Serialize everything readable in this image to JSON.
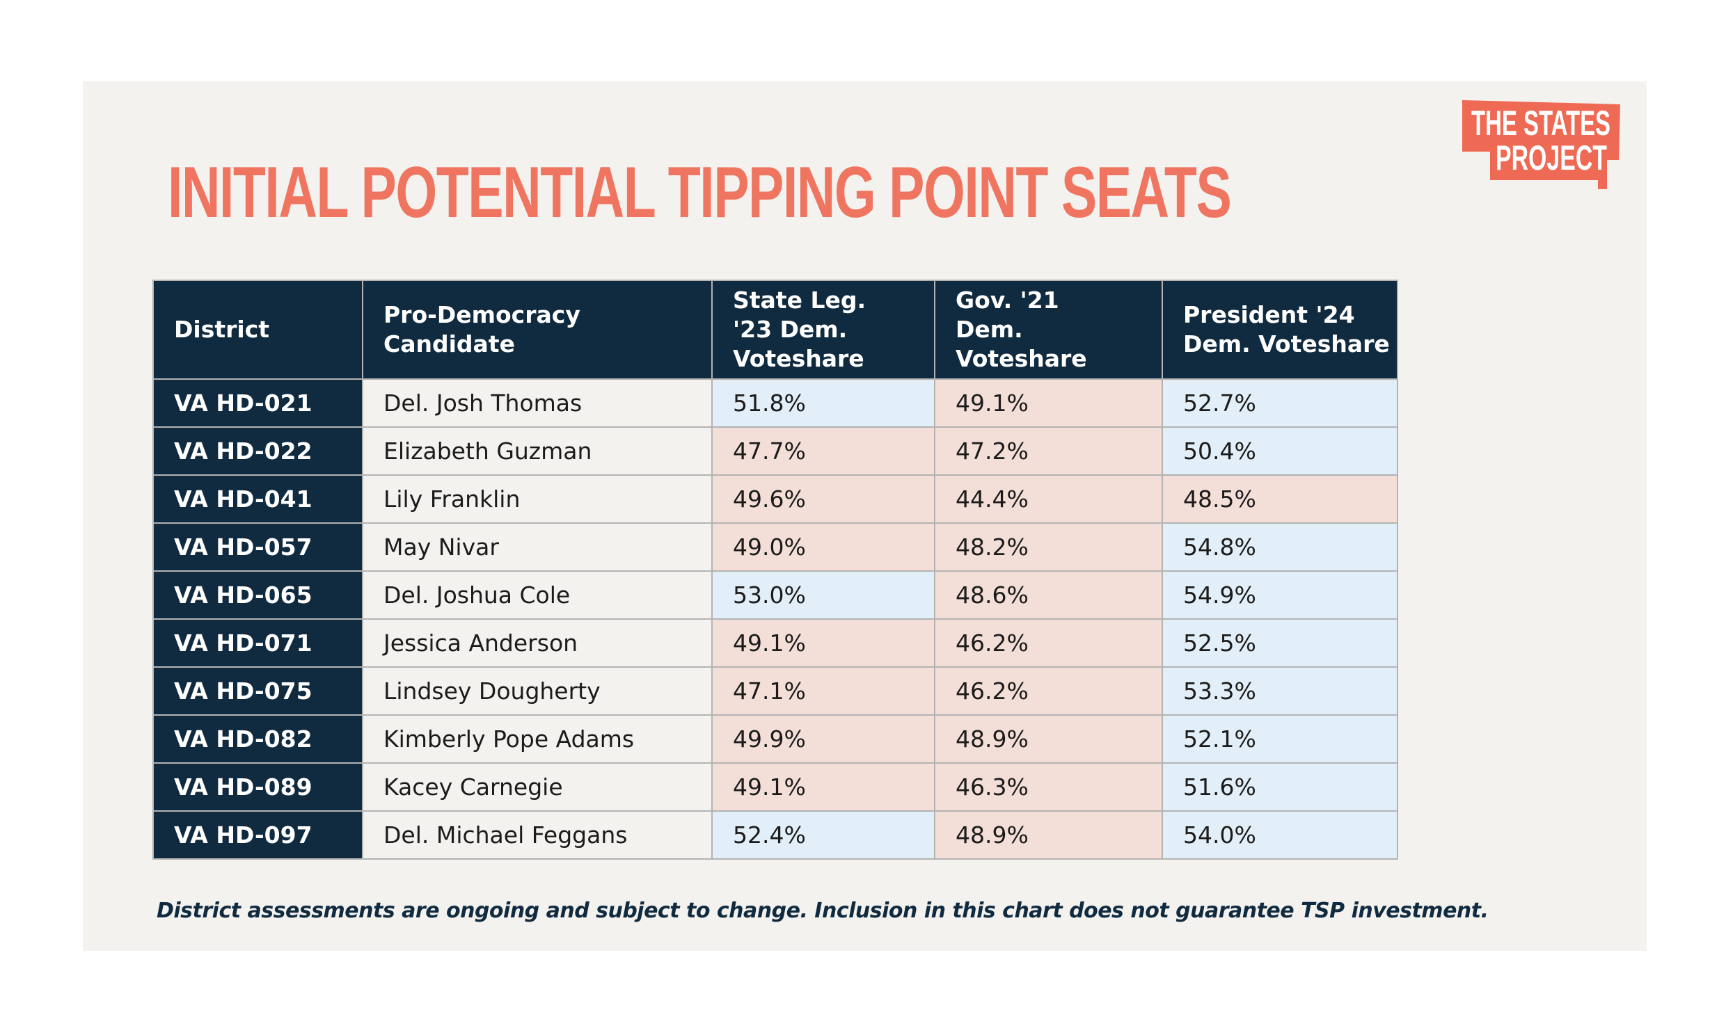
{
  "title": "INITIAL POTENTIAL TIPPING POINT SEATS",
  "logo": {
    "line1": "THE STATES",
    "line2": "PROJECT"
  },
  "table": {
    "headers": {
      "district": "District",
      "candidate": "Pro-Democracy Candidate",
      "state_leg_23": "State Leg. '23 Dem. Voteshare",
      "gov_21": "Gov. '21 Dem. Voteshare",
      "president_24": "President '24 Dem. Voteshare"
    },
    "rows": [
      {
        "district": "VA HD-021",
        "candidate": "Del. Josh Thomas",
        "state_leg_23": "51.8%",
        "gov_21": "49.1%",
        "president_24": "52.7%"
      },
      {
        "district": "VA HD-022",
        "candidate": "Elizabeth Guzman",
        "state_leg_23": "47.7%",
        "gov_21": "47.2%",
        "president_24": "50.4%"
      },
      {
        "district": "VA HD-041",
        "candidate": "Lily Franklin",
        "state_leg_23": "49.6%",
        "gov_21": "44.4%",
        "president_24": "48.5%"
      },
      {
        "district": "VA HD-057",
        "candidate": "May Nivar",
        "state_leg_23": "49.0%",
        "gov_21": "48.2%",
        "president_24": "54.8%"
      },
      {
        "district": "VA HD-065",
        "candidate": "Del. Joshua Cole",
        "state_leg_23": "53.0%",
        "gov_21": "48.6%",
        "president_24": "54.9%"
      },
      {
        "district": "VA HD-071",
        "candidate": "Jessica Anderson",
        "state_leg_23": "49.1%",
        "gov_21": "46.2%",
        "president_24": "52.5%"
      },
      {
        "district": "VA HD-075",
        "candidate": "Lindsey Dougherty",
        "state_leg_23": "47.1%",
        "gov_21": "46.2%",
        "president_24": "53.3%"
      },
      {
        "district": "VA HD-082",
        "candidate": "Kimberly Pope Adams",
        "state_leg_23": "49.9%",
        "gov_21": "48.9%",
        "president_24": "52.1%"
      },
      {
        "district": "VA HD-089",
        "candidate": "Kacey Carnegie",
        "state_leg_23": "49.1%",
        "gov_21": "46.3%",
        "president_24": "51.6%"
      },
      {
        "district": "VA HD-097",
        "candidate": "Del. Michael Feggans",
        "state_leg_23": "52.4%",
        "gov_21": "48.9%",
        "president_24": "54.0%"
      }
    ]
  },
  "footnote": "District assessments are ongoing and subject to change. Inclusion in this chart does not guarantee TSP investment.",
  "colors": {
    "title": "#ef7560",
    "navy": "#102b40",
    "dem_win": "#e2eff8",
    "dem_loss": "#f4dfd8",
    "logo": "#ef6a55"
  }
}
